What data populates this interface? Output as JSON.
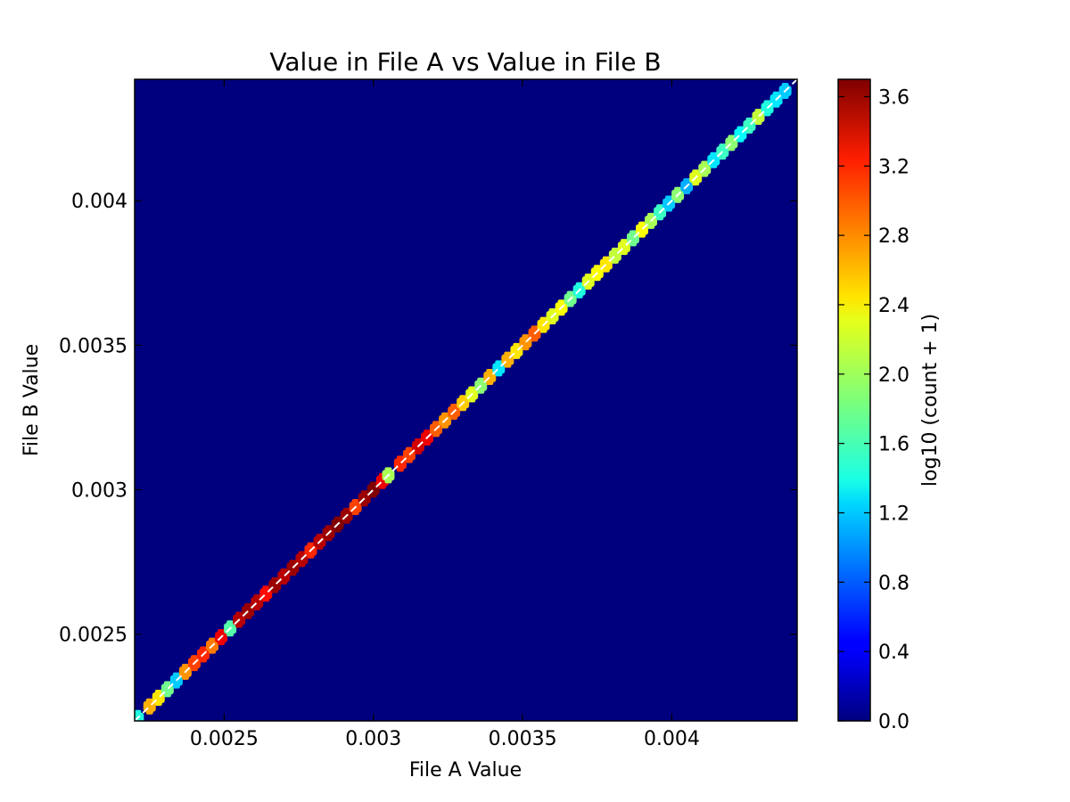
{
  "chart_data": {
    "type": "heatmap",
    "title": "Value in File A vs Value in File B",
    "xlabel": "File A Value",
    "ylabel": "File B Value",
    "xlim": [
      0.0022,
      0.00442
    ],
    "ylim": [
      0.0022,
      0.00442
    ],
    "x_ticks": [
      {
        "value": 0.0025,
        "label": "0.0025"
      },
      {
        "value": 0.003,
        "label": "0.003"
      },
      {
        "value": 0.0035,
        "label": "0.0035"
      },
      {
        "value": 0.004,
        "label": "0.004"
      }
    ],
    "y_ticks": [
      {
        "value": 0.0025,
        "label": "0.0025"
      },
      {
        "value": 0.003,
        "label": "0.003"
      },
      {
        "value": 0.0035,
        "label": "0.0035"
      },
      {
        "value": 0.004,
        "label": "0.004"
      }
    ],
    "colorbar": {
      "label": "log10 (count + 1)",
      "colormap": "jet",
      "range": [
        0.0,
        3.7
      ],
      "ticks": [
        {
          "value": 0.0,
          "label": "0.0"
        },
        {
          "value": 0.4,
          "label": "0.4"
        },
        {
          "value": 0.8,
          "label": "0.8"
        },
        {
          "value": 1.2,
          "label": "1.2"
        },
        {
          "value": 1.6,
          "label": "1.6"
        },
        {
          "value": 2.0,
          "label": "2.0"
        },
        {
          "value": 2.4,
          "label": "2.4"
        },
        {
          "value": 2.8,
          "label": "2.8"
        },
        {
          "value": 3.2,
          "label": "3.2"
        },
        {
          "value": 3.6,
          "label": "3.6"
        }
      ]
    },
    "background_value": 0.0,
    "reference_line": {
      "style": "dashed",
      "color": "#ffffff",
      "from": [
        0.0022,
        0.0022
      ],
      "to": [
        0.00442,
        0.00442
      ]
    },
    "diagonal_cells": [
      {
        "v": 0.00221,
        "c": 1.5
      },
      {
        "v": 0.00225,
        "c": 2.6
      },
      {
        "v": 0.00228,
        "c": 2.4
      },
      {
        "v": 0.00231,
        "c": 1.8
      },
      {
        "v": 0.00234,
        "c": 1.2
      },
      {
        "v": 0.00237,
        "c": 2.7
      },
      {
        "v": 0.0024,
        "c": 3.0
      },
      {
        "v": 0.00243,
        "c": 3.1
      },
      {
        "v": 0.00246,
        "c": 2.8
      },
      {
        "v": 0.00249,
        "c": 3.3
      },
      {
        "v": 0.00252,
        "c": 1.7
      },
      {
        "v": 0.00255,
        "c": 3.5
      },
      {
        "v": 0.00258,
        "c": 3.6
      },
      {
        "v": 0.00261,
        "c": 3.5
      },
      {
        "v": 0.00264,
        "c": 3.2
      },
      {
        "v": 0.00267,
        "c": 3.6
      },
      {
        "v": 0.0027,
        "c": 3.5
      },
      {
        "v": 0.00273,
        "c": 3.6
      },
      {
        "v": 0.00276,
        "c": 3.5
      },
      {
        "v": 0.00279,
        "c": 3.1
      },
      {
        "v": 0.00282,
        "c": 3.5
      },
      {
        "v": 0.00285,
        "c": 3.6
      },
      {
        "v": 0.00288,
        "c": 3.7
      },
      {
        "v": 0.00291,
        "c": 3.6
      },
      {
        "v": 0.00294,
        "c": 3.0
      },
      {
        "v": 0.00297,
        "c": 3.6
      },
      {
        "v": 0.003,
        "c": 3.7
      },
      {
        "v": 0.00303,
        "c": 3.3
      },
      {
        "v": 0.00305,
        "c": 2.0
      },
      {
        "v": 0.00309,
        "c": 3.1
      },
      {
        "v": 0.00312,
        "c": 3.0
      },
      {
        "v": 0.00315,
        "c": 3.4
      },
      {
        "v": 0.00318,
        "c": 3.3
      },
      {
        "v": 0.00321,
        "c": 2.9
      },
      {
        "v": 0.00324,
        "c": 2.7
      },
      {
        "v": 0.00327,
        "c": 2.9
      },
      {
        "v": 0.0033,
        "c": 2.5
      },
      {
        "v": 0.00333,
        "c": 2.2
      },
      {
        "v": 0.00336,
        "c": 1.9
      },
      {
        "v": 0.00339,
        "c": 2.6
      },
      {
        "v": 0.00342,
        "c": 1.3
      },
      {
        "v": 0.00345,
        "c": 2.6
      },
      {
        "v": 0.00348,
        "c": 2.4
      },
      {
        "v": 0.00351,
        "c": 2.7
      },
      {
        "v": 0.00354,
        "c": 2.9
      },
      {
        "v": 0.00357,
        "c": 2.4
      },
      {
        "v": 0.0036,
        "c": 2.2
      },
      {
        "v": 0.00363,
        "c": 2.3
      },
      {
        "v": 0.00366,
        "c": 1.8
      },
      {
        "v": 0.00369,
        "c": 1.5
      },
      {
        "v": 0.00372,
        "c": 2.2
      },
      {
        "v": 0.00375,
        "c": 2.3
      },
      {
        "v": 0.00378,
        "c": 2.4
      },
      {
        "v": 0.00381,
        "c": 2.1
      },
      {
        "v": 0.00384,
        "c": 2.2
      },
      {
        "v": 0.00387,
        "c": 1.8
      },
      {
        "v": 0.0039,
        "c": 2.3
      },
      {
        "v": 0.00393,
        "c": 2.0
      },
      {
        "v": 0.00396,
        "c": 1.6
      },
      {
        "v": 0.00399,
        "c": 1.2
      },
      {
        "v": 0.00402,
        "c": 1.9
      },
      {
        "v": 0.00405,
        "c": 1.1
      },
      {
        "v": 0.00408,
        "c": 2.2
      },
      {
        "v": 0.00411,
        "c": 2.0
      },
      {
        "v": 0.00414,
        "c": 1.3
      },
      {
        "v": 0.00417,
        "c": 1.6
      },
      {
        "v": 0.0042,
        "c": 1.9
      },
      {
        "v": 0.00423,
        "c": 1.4
      },
      {
        "v": 0.00426,
        "c": 1.6
      },
      {
        "v": 0.00429,
        "c": 2.1
      },
      {
        "v": 0.00432,
        "c": 1.5
      },
      {
        "v": 0.00435,
        "c": 1.3
      },
      {
        "v": 0.00438,
        "c": 1.2
      }
    ]
  }
}
